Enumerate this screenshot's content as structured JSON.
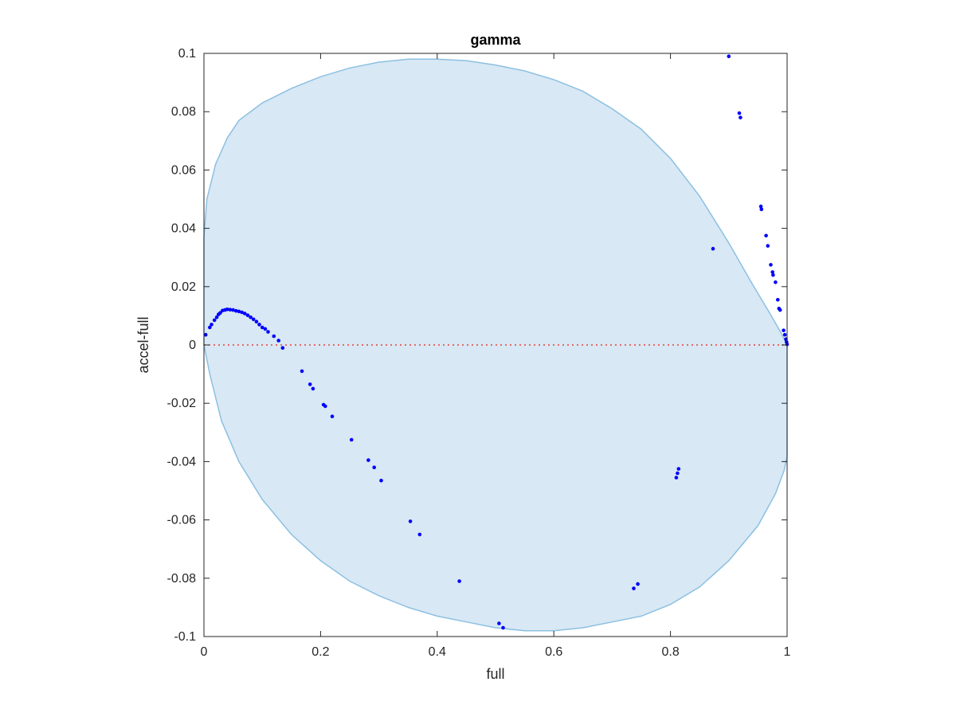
{
  "chart_data": {
    "type": "scatter",
    "title": "gamma",
    "xlabel": "full",
    "ylabel": "accel-full",
    "xlim": [
      0,
      1
    ],
    "ylim": [
      -0.1,
      0.1
    ],
    "xticks": [
      "0",
      "0.2",
      "0.4",
      "0.6",
      "0.8",
      "1"
    ],
    "yticks": [
      "-0.1",
      "-0.08",
      "-0.06",
      "-0.04",
      "-0.02",
      "0",
      "0.02",
      "0.04",
      "0.06",
      "0.08",
      "0.1"
    ],
    "xtick_values": [
      0,
      0.2,
      0.4,
      0.6,
      0.8,
      1
    ],
    "ytick_values": [
      -0.1,
      -0.08,
      -0.06,
      -0.04,
      -0.02,
      0,
      0.02,
      0.04,
      0.06,
      0.08,
      0.1
    ],
    "grid": false,
    "reference_line": {
      "y": 0,
      "style": "dotted",
      "color": "#e8413a"
    },
    "region": {
      "color": "#d8e8f4",
      "edge_color": "#8cc0e2",
      "outline": [
        [
          0,
          0.037
        ],
        [
          0.005,
          0.05
        ],
        [
          0.02,
          0.062
        ],
        [
          0.04,
          0.071
        ],
        [
          0.06,
          0.077
        ],
        [
          0.1,
          0.083
        ],
        [
          0.15,
          0.088
        ],
        [
          0.2,
          0.092
        ],
        [
          0.25,
          0.095
        ],
        [
          0.3,
          0.097
        ],
        [
          0.35,
          0.098
        ],
        [
          0.4,
          0.098
        ],
        [
          0.45,
          0.0975
        ],
        [
          0.5,
          0.096
        ],
        [
          0.55,
          0.094
        ],
        [
          0.6,
          0.091
        ],
        [
          0.65,
          0.087
        ],
        [
          0.7,
          0.081
        ],
        [
          0.75,
          0.074
        ],
        [
          0.8,
          0.064
        ],
        [
          0.85,
          0.051
        ],
        [
          0.9,
          0.035
        ],
        [
          0.94,
          0.021
        ],
        [
          0.97,
          0.011
        ],
        [
          0.99,
          0.004
        ],
        [
          1,
          0
        ],
        [
          1,
          -0.038
        ],
        [
          0.995,
          -0.043
        ],
        [
          0.98,
          -0.051
        ],
        [
          0.95,
          -0.062
        ],
        [
          0.9,
          -0.074
        ],
        [
          0.85,
          -0.083
        ],
        [
          0.8,
          -0.089
        ],
        [
          0.75,
          -0.093
        ],
        [
          0.7,
          -0.095
        ],
        [
          0.65,
          -0.097
        ],
        [
          0.6,
          -0.098
        ],
        [
          0.55,
          -0.098
        ],
        [
          0.5,
          -0.097
        ],
        [
          0.45,
          -0.095
        ],
        [
          0.4,
          -0.093
        ],
        [
          0.35,
          -0.09
        ],
        [
          0.3,
          -0.086
        ],
        [
          0.25,
          -0.081
        ],
        [
          0.2,
          -0.074
        ],
        [
          0.15,
          -0.065
        ],
        [
          0.1,
          -0.053
        ],
        [
          0.06,
          -0.04
        ],
        [
          0.03,
          -0.026
        ],
        [
          0.01,
          -0.01
        ],
        [
          0,
          0
        ]
      ]
    },
    "series": [
      {
        "color": "#0000ff",
        "points": [
          [
            0.003,
            0.0035
          ],
          [
            0.01,
            0.006
          ],
          [
            0.013,
            0.007
          ],
          [
            0.018,
            0.0085
          ],
          [
            0.022,
            0.0095
          ],
          [
            0.025,
            0.0105
          ],
          [
            0.028,
            0.011
          ],
          [
            0.032,
            0.0118
          ],
          [
            0.036,
            0.012
          ],
          [
            0.04,
            0.0122
          ],
          [
            0.045,
            0.0121
          ],
          [
            0.05,
            0.012
          ],
          [
            0.055,
            0.0117
          ],
          [
            0.06,
            0.0115
          ],
          [
            0.065,
            0.0112
          ],
          [
            0.07,
            0.0108
          ],
          [
            0.075,
            0.0102
          ],
          [
            0.08,
            0.0095
          ],
          [
            0.085,
            0.0088
          ],
          [
            0.09,
            0.008
          ],
          [
            0.095,
            0.007
          ],
          [
            0.1,
            0.006
          ],
          [
            0.105,
            0.0055
          ],
          [
            0.11,
            0.0045
          ],
          [
            0.12,
            0.003
          ],
          [
            0.128,
            0.0015
          ],
          [
            0.135,
            -0.001
          ],
          [
            0.168,
            -0.009
          ],
          [
            0.182,
            -0.0135
          ],
          [
            0.187,
            -0.015
          ],
          [
            0.205,
            -0.0205
          ],
          [
            0.208,
            -0.021
          ],
          [
            0.22,
            -0.0245
          ],
          [
            0.253,
            -0.0325
          ],
          [
            0.282,
            -0.0395
          ],
          [
            0.292,
            -0.042
          ],
          [
            0.304,
            -0.0465
          ],
          [
            0.354,
            -0.0605
          ],
          [
            0.37,
            -0.065
          ],
          [
            0.438,
            -0.081
          ],
          [
            0.506,
            -0.0955
          ],
          [
            0.513,
            -0.097
          ],
          [
            0.737,
            -0.0835
          ],
          [
            0.744,
            -0.082
          ],
          [
            0.81,
            -0.0455
          ],
          [
            0.812,
            -0.044
          ],
          [
            0.814,
            -0.0425
          ],
          [
            0.873,
            0.033
          ],
          [
            0.9,
            0.099
          ],
          [
            0.918,
            0.0795
          ],
          [
            0.92,
            0.078
          ],
          [
            0.955,
            0.0475
          ],
          [
            0.956,
            0.0465
          ],
          [
            0.964,
            0.0375
          ],
          [
            0.967,
            0.034
          ],
          [
            0.972,
            0.0275
          ],
          [
            0.975,
            0.025
          ],
          [
            0.976,
            0.024
          ],
          [
            0.98,
            0.0215
          ],
          [
            0.984,
            0.0155
          ],
          [
            0.986,
            0.0125
          ],
          [
            0.988,
            0.012
          ],
          [
            0.994,
            0.005
          ],
          [
            0.996,
            0.0035
          ],
          [
            0.998,
            0.002
          ],
          [
            0.999,
            0.001
          ],
          [
            1,
            0.0002
          ]
        ]
      }
    ]
  }
}
